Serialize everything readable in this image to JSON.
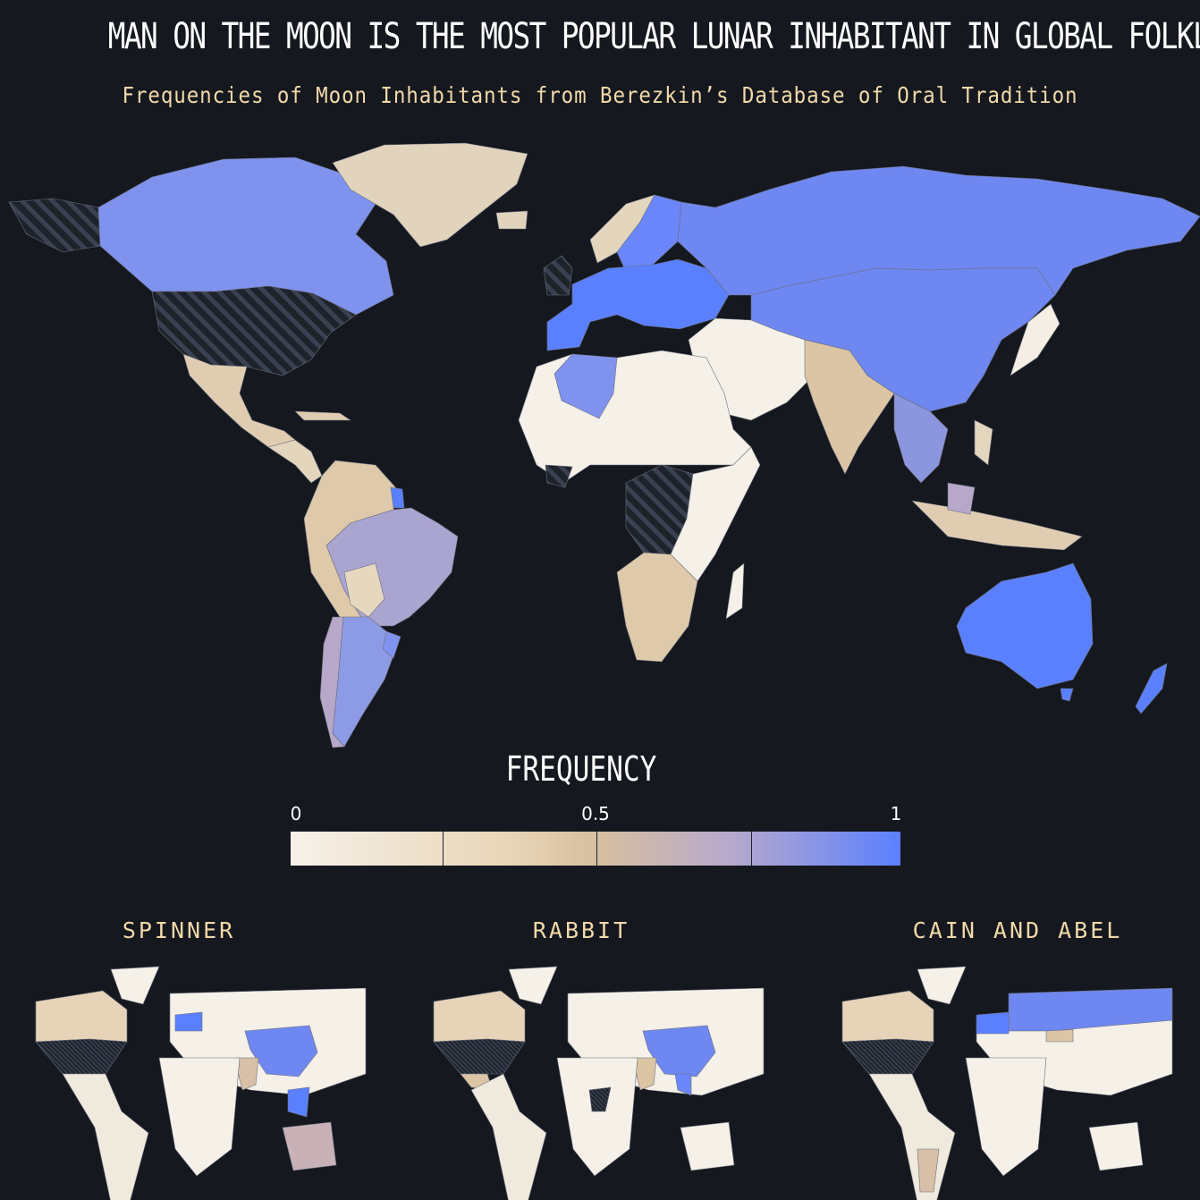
{
  "title": "MAN ON THE MOON IS THE MOST POPULAR LUNAR INHABITANT IN GLOBAL FOLKLORE",
  "subtitle": "Frequencies of Moon Inhabitants from Berezkin’s Database of Oral Tradition",
  "legend": {
    "title": "FREQUENCY",
    "ticks": [
      "0",
      "0.5",
      "1"
    ],
    "colors": {
      "low": "#f6f1e9",
      "mid": "#d7bf9f",
      "high": "#5b80ff",
      "no_data": "#2a2f3a"
    }
  },
  "main_map": {
    "regions": [
      {
        "name": "Canada",
        "level": 0.95
      },
      {
        "name": "United States",
        "level": null
      },
      {
        "name": "Greenland",
        "level": 0.4
      },
      {
        "name": "Mexico",
        "level": 0.45
      },
      {
        "name": "Central America",
        "level": 0.45
      },
      {
        "name": "Brazil",
        "level": 0.72
      },
      {
        "name": "Argentina",
        "level": 0.9
      },
      {
        "name": "Andes",
        "level": 0.45
      },
      {
        "name": "Europe",
        "level": 1.0
      },
      {
        "name": "Russia",
        "level": 0.95
      },
      {
        "name": "China",
        "level": 0.95
      },
      {
        "name": "North Africa",
        "level": 0.05
      },
      {
        "name": "Algeria",
        "level": 0.9
      },
      {
        "name": "Central Africa",
        "level": null
      },
      {
        "name": "Southern Africa",
        "level": 0.4
      },
      {
        "name": "Middle East",
        "level": 0.05
      },
      {
        "name": "India",
        "level": 0.45
      },
      {
        "name": "Southeast Asia",
        "level": 0.85
      },
      {
        "name": "Australia",
        "level": 1.0
      },
      {
        "name": "New Zealand",
        "level": 1.0
      }
    ]
  },
  "small_maps": [
    {
      "title": "SPINNER",
      "highlights": [
        "China",
        "Central Europe",
        "Philippines"
      ],
      "medium": [
        "India",
        "Australia",
        "Canada"
      ]
    },
    {
      "title": "RABBIT",
      "highlights": [
        "China",
        "Southeast Asia"
      ],
      "medium": [
        "India",
        "Mexico",
        "Canada"
      ]
    },
    {
      "title": "CAIN AND ABEL",
      "highlights": [
        "Russia",
        "Europe"
      ],
      "medium": [
        "Canada",
        "Argentina",
        "Central Asia"
      ]
    }
  ]
}
